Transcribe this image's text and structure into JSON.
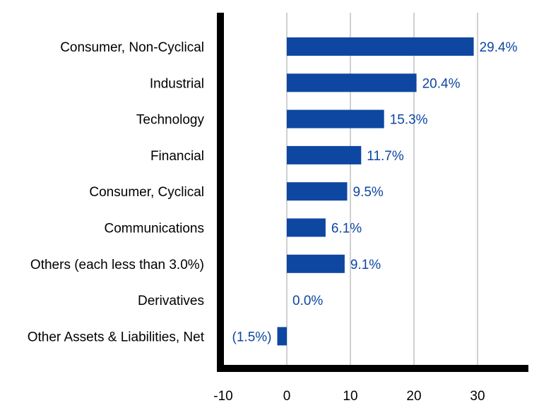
{
  "chart_data": {
    "type": "bar",
    "orientation": "horizontal",
    "categories": [
      "Consumer, Non-Cyclical",
      "Industrial",
      "Technology",
      "Financial",
      "Consumer, Cyclical",
      "Communications",
      "Others (each less than 3.0%)",
      "Derivatives",
      "Other Assets & Liabilities, Net"
    ],
    "values": [
      29.4,
      20.4,
      15.3,
      11.7,
      9.5,
      6.1,
      9.1,
      0.0,
      -1.5
    ],
    "data_labels": [
      "29.4%",
      "20.4%",
      "15.3%",
      "11.7%",
      "9.5%",
      "6.1%",
      "9.1%",
      "0.0%",
      "(1.5%)"
    ],
    "x_ticks": [
      -10,
      0,
      10,
      20,
      30
    ],
    "x_tick_labels": [
      "-10",
      "0",
      "10",
      "20",
      "30"
    ],
    "xlim": [
      -10,
      38
    ],
    "grid": "vertical",
    "legend": "none",
    "colors": {
      "bar": "#0d47a1",
      "label": "#0d47a1",
      "axis": "#000000",
      "grid": "#d0d0d0"
    }
  }
}
